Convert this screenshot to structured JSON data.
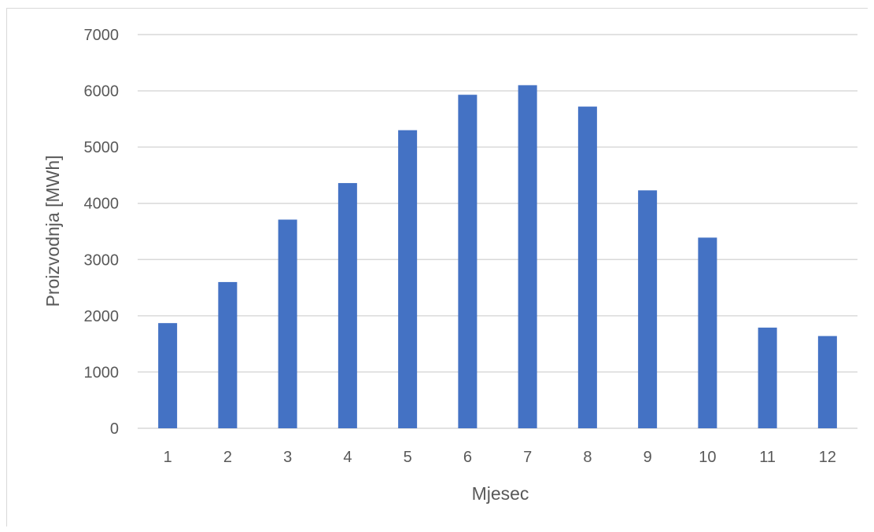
{
  "chart_data": {
    "type": "bar",
    "title": "",
    "xlabel": "Mjesec",
    "ylabel": "Proizvodnja [MWh]",
    "categories": [
      "1",
      "2",
      "3",
      "4",
      "5",
      "6",
      "7",
      "8",
      "9",
      "10",
      "11",
      "12"
    ],
    "values": [
      1870,
      2600,
      3710,
      4360,
      5300,
      5930,
      6100,
      5720,
      4230,
      3390,
      1790,
      1640
    ],
    "yticks": [
      "0",
      "1000",
      "2000",
      "3000",
      "4000",
      "5000",
      "6000",
      "7000"
    ],
    "ylim": [
      0,
      7000
    ],
    "grid": true,
    "legend": "none",
    "colors": {
      "bar": "#4472c4",
      "grid": "#d9d9d9",
      "text": "#595959"
    }
  }
}
